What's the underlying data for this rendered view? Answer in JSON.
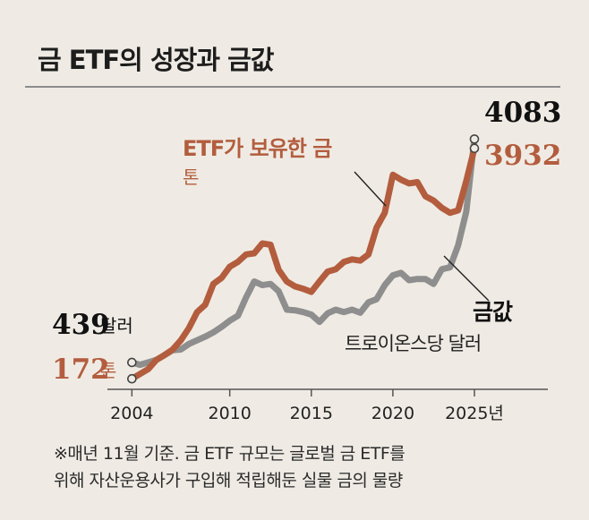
{
  "title": "금 ETF의 성장과 금값",
  "chart_data": {
    "type": "line",
    "x_ticks": [
      "2004",
      "2010",
      "2015",
      "2020",
      "2025년"
    ],
    "x_tick_values": [
      2004,
      2010,
      2015,
      2020,
      2025
    ],
    "xlim": [
      2002.5,
      2029.5
    ],
    "series": [
      {
        "name": "ETF가 보유한 금",
        "unit": "톤",
        "color": "#b35d3e",
        "start_label": "172",
        "start_unit": "톤",
        "end_label": "3932",
        "x": [
          2004.0,
          2004.5,
          2005.0,
          2005.5,
          2006.0,
          2006.5,
          2007.0,
          2007.5,
          2008.0,
          2008.5,
          2009.0,
          2009.5,
          2010.0,
          2010.5,
          2011.0,
          2011.5,
          2012.0,
          2012.5,
          2013.0,
          2013.5,
          2014.0,
          2014.5,
          2015.0,
          2015.5,
          2016.0,
          2016.5,
          2017.0,
          2017.5,
          2018.0,
          2018.5,
          2019.0,
          2019.5,
          2020.0,
          2020.5,
          2021.0,
          2021.5,
          2022.0,
          2022.5,
          2023.0,
          2023.5,
          2024.0,
          2024.5,
          2025.0
        ],
        "y": [
          172,
          250,
          330,
          480,
          560,
          650,
          800,
          1000,
          1260,
          1380,
          1720,
          1820,
          2000,
          2080,
          2200,
          2220,
          2380,
          2360,
          1950,
          1760,
          1680,
          1640,
          1590,
          1760,
          1920,
          1960,
          2080,
          2120,
          2100,
          2200,
          2640,
          2880,
          3500,
          3420,
          3360,
          3380,
          3150,
          3080,
          2960,
          2880,
          2920,
          3400,
          3932
        ]
      },
      {
        "name": "금값",
        "unit": "트로이온스당 달러",
        "color": "#8e8e8e",
        "start_label": "439",
        "start_unit": "달러",
        "end_label": "4083",
        "x": [
          2004.0,
          2004.5,
          2005.0,
          2005.5,
          2006.0,
          2006.5,
          2007.0,
          2007.5,
          2008.0,
          2008.5,
          2009.0,
          2009.5,
          2010.0,
          2010.5,
          2011.0,
          2011.5,
          2012.0,
          2012.5,
          2013.0,
          2013.5,
          2014.0,
          2014.5,
          2015.0,
          2015.5,
          2016.0,
          2016.5,
          2017.0,
          2017.5,
          2018.0,
          2018.5,
          2019.0,
          2019.5,
          2020.0,
          2020.5,
          2021.0,
          2021.5,
          2022.0,
          2022.5,
          2023.0,
          2023.5,
          2024.0,
          2024.5,
          2025.0
        ],
        "y": [
          439,
          400,
          440,
          480,
          560,
          640,
          650,
          740,
          800,
          860,
          930,
          1020,
          1120,
          1200,
          1500,
          1760,
          1700,
          1720,
          1600,
          1300,
          1290,
          1260,
          1220,
          1100,
          1240,
          1300,
          1260,
          1300,
          1250,
          1420,
          1470,
          1700,
          1860,
          1900,
          1780,
          1800,
          1800,
          1720,
          1960,
          1990,
          2350,
          2900,
          4083
        ]
      }
    ],
    "ylim": [
      0,
      4600
    ]
  },
  "labels": {
    "etf_name": "ETF가 보유한 금",
    "etf_unit": "톤",
    "gold_name": "금값",
    "gold_unit": "트로이온스당 달러"
  },
  "note": {
    "line1": "※매년 11월 기준. 금 ETF 규모는 글로벌 금 ETF를",
    "line2": "위해 자산운용사가 구입해 적립해둔 실물 금의 물량"
  }
}
